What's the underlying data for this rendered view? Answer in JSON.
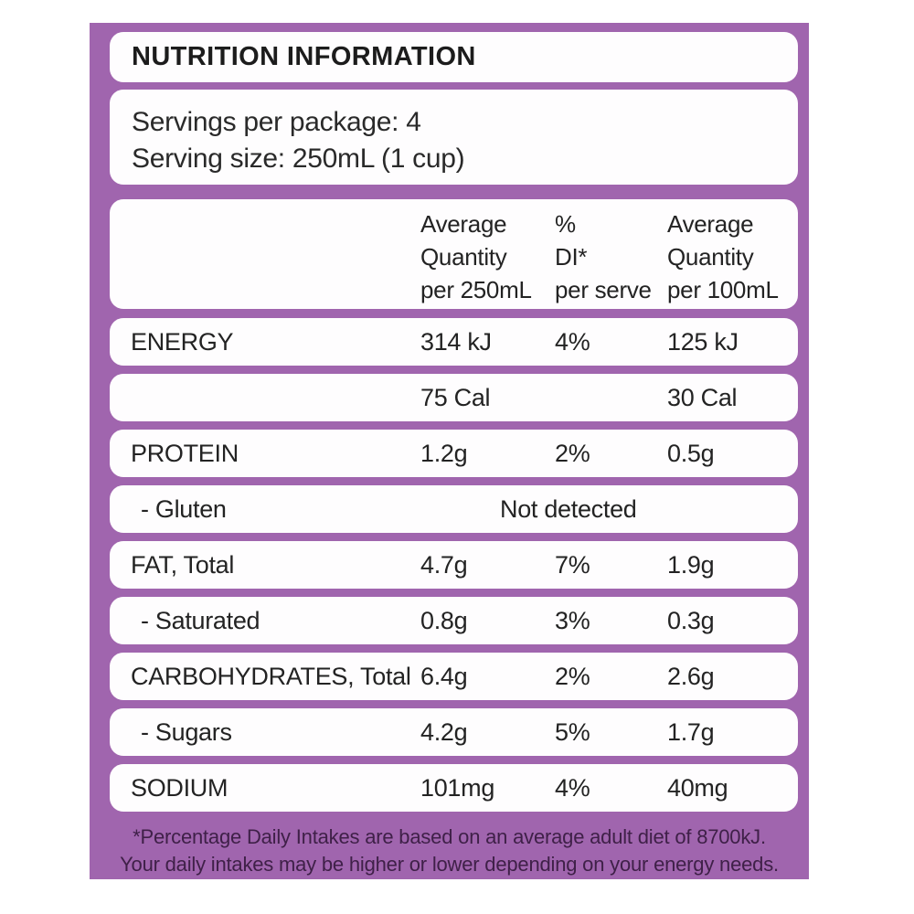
{
  "panel": {
    "title": "NUTRITION INFORMATION",
    "servings_per_package": "Servings per package: 4",
    "serving_size": "Serving size: 250mL (1 cup)",
    "footnote_line1": "*Percentage Daily Intakes are based on an average adult diet of 8700kJ.",
    "footnote_line2": "Your daily intakes may be higher or lower depending on your energy needs."
  },
  "table": {
    "header": {
      "avg250": [
        "Average",
        "Quantity",
        "per 250mL"
      ],
      "di": [
        "%",
        "DI*",
        "per serve"
      ],
      "avg100": [
        "Average",
        "Quantity",
        "per 100mL"
      ]
    },
    "rows": [
      {
        "label": "ENERGY",
        "v250": "314 kJ",
        "di": "4%",
        "v100": "125 kJ",
        "indent": false
      },
      {
        "label": "",
        "v250": "75 Cal",
        "di": "",
        "v100": "30 Cal",
        "indent": false
      },
      {
        "label": "PROTEIN",
        "v250": "1.2g",
        "di": "2%",
        "v100": "0.5g",
        "indent": false
      },
      {
        "label": "- Gluten",
        "span": "Not detected",
        "indent": true
      },
      {
        "label": "FAT, Total",
        "v250": "4.7g",
        "di": "7%",
        "v100": "1.9g",
        "indent": false
      },
      {
        "label": "- Saturated",
        "v250": "0.8g",
        "di": "3%",
        "v100": "0.3g",
        "indent": true
      },
      {
        "label": "CARBOHYDRATES, Total",
        "v250": "6.4g",
        "di": "2%",
        "v100": "2.6g",
        "indent": false
      },
      {
        "label": "- Sugars",
        "v250": "4.2g",
        "di": "5%",
        "v100": "1.7g",
        "indent": true
      },
      {
        "label": "SODIUM",
        "v250": "101mg",
        "di": "4%",
        "v100": "40mg",
        "indent": false
      }
    ]
  },
  "colors": {
    "panel_purple": "#A065AE",
    "card_white": "#FEFDFE",
    "text_dark": "#232323",
    "footnote_purple": "#3F2048"
  }
}
